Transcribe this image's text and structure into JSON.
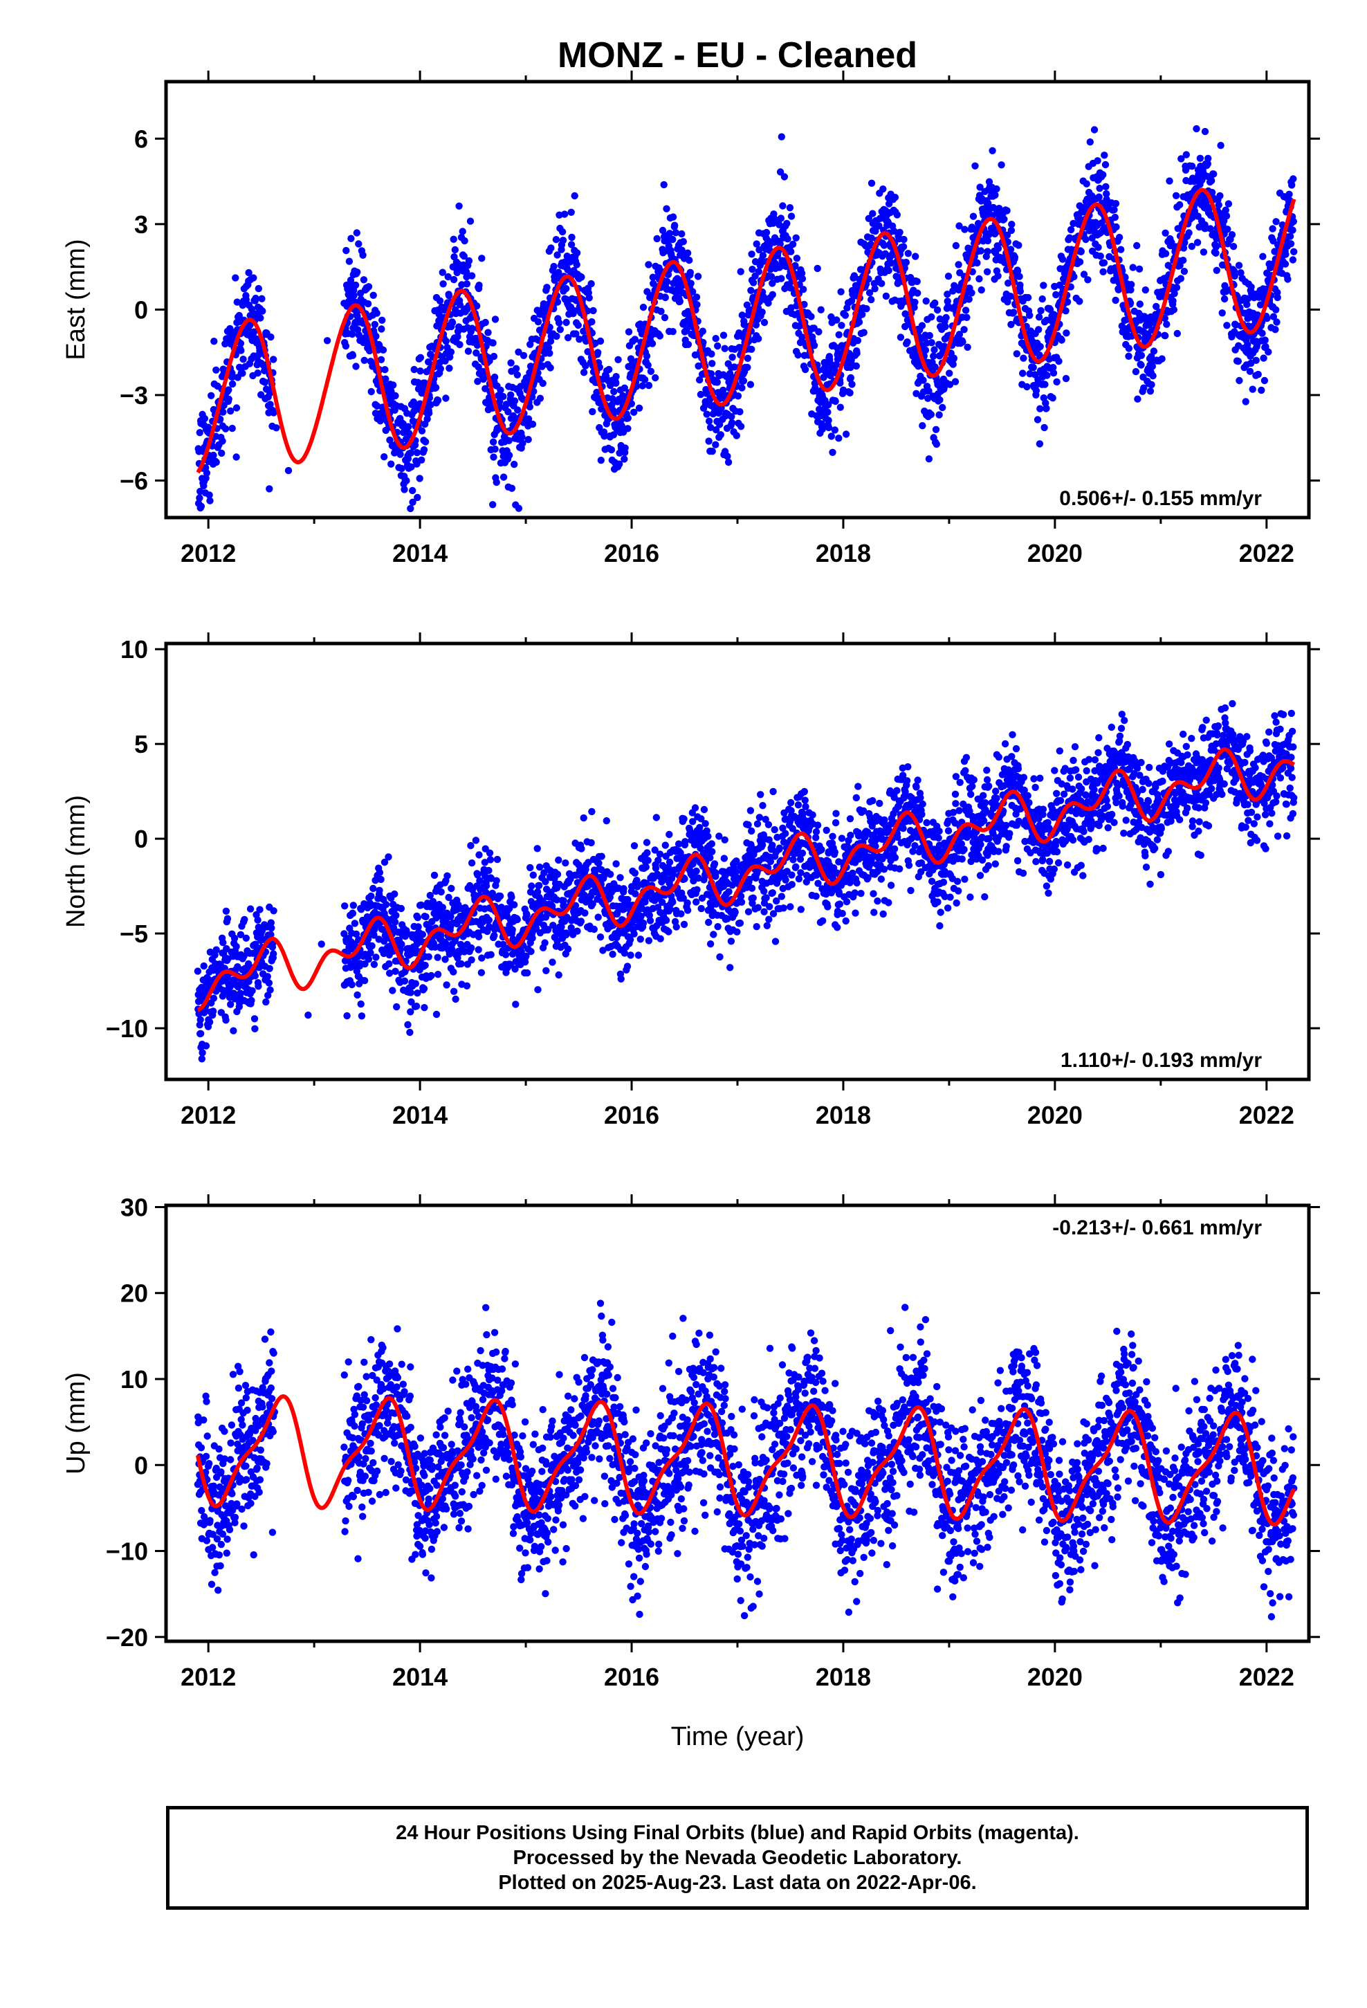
{
  "figure": {
    "title": "MONZ  - EU - Cleaned",
    "xlabel": "Time (year)"
  },
  "caption": {
    "line1": "24 Hour Positions Using Final Orbits (blue) and Rapid Orbits (magenta).",
    "line2": "Processed by the Nevada Geodetic Laboratory.",
    "line3": "Plotted on 2025-Aug-23. Last data on 2022-Apr-06."
  },
  "colors": {
    "points": "#0000ff",
    "model": "#ff0000",
    "frame": "#000000"
  },
  "chart_data": [
    {
      "type": "scatter",
      "ylabel": "East (mm)",
      "xlim": [
        2011.6,
        2022.4
      ],
      "ylim": [
        -7.3,
        8.0
      ],
      "xticks": [
        2012,
        2014,
        2016,
        2018,
        2020,
        2022
      ],
      "yticks": [
        -6,
        -3,
        0,
        3,
        6
      ],
      "rate_label": "0.506+/- 0.155 mm/yr",
      "rate_position": "bottom-right",
      "data_span": [
        2011.9,
        2022.26
      ],
      "data_gap": [
        2012.62,
        2013.28
      ],
      "model": {
        "trend": 0.506,
        "offset": -0.6,
        "annual_amp": 2.6,
        "semiannual_amp": 0.15,
        "phase_year": 0.37
      },
      "scatter_sigma": 1.0,
      "series": [
        {
          "name": "Final Orbits (blue)",
          "points": "daily"
        },
        {
          "name": "Rapid Orbits (magenta)",
          "points": "model line"
        }
      ]
    },
    {
      "type": "scatter",
      "ylabel": "North (mm)",
      "xlim": [
        2011.6,
        2022.4
      ],
      "ylim": [
        -12.7,
        10.3
      ],
      "xticks": [
        2012,
        2014,
        2016,
        2018,
        2020,
        2022
      ],
      "yticks": [
        -10,
        -5,
        0,
        5,
        10
      ],
      "rate_label": "1.110+/- 0.193 mm/yr",
      "rate_position": "bottom-right",
      "data_span": [
        2011.9,
        2022.26
      ],
      "data_gap": [
        2012.62,
        2013.28
      ],
      "model": {
        "trend": 1.11,
        "offset": -1.8,
        "annual_amp": 0.9,
        "semiannual_amp": 0.8,
        "phase_year": 0.5
      },
      "scatter_sigma": 1.3,
      "series": [
        {
          "name": "Final Orbits (blue)",
          "points": "daily"
        },
        {
          "name": "Rapid Orbits (magenta)",
          "points": "model line"
        }
      ]
    },
    {
      "type": "scatter",
      "ylabel": "Up (mm)",
      "xlim": [
        2011.6,
        2022.4
      ],
      "ylim": [
        -20.5,
        30.2
      ],
      "xticks": [
        2012,
        2014,
        2016,
        2018,
        2020,
        2022
      ],
      "yticks": [
        -20,
        -10,
        0,
        10,
        20,
        30
      ],
      "rate_label": "-0.213+/- 0.661 mm/yr",
      "rate_position": "top-right",
      "data_span": [
        2011.9,
        2022.26
      ],
      "data_gap": [
        2012.62,
        2013.28
      ],
      "model": {
        "trend": -0.213,
        "offset": 0.6,
        "annual_amp": 5.6,
        "semiannual_amp": 1.8,
        "phase_year": 0.64
      },
      "scatter_sigma": 4.5,
      "series": [
        {
          "name": "Final Orbits (blue)",
          "points": "daily"
        },
        {
          "name": "Rapid Orbits (magenta)",
          "points": "model line"
        }
      ]
    }
  ]
}
